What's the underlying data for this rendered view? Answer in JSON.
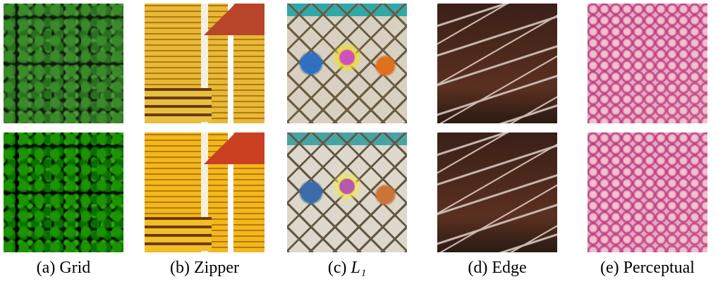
{
  "figure": {
    "panels": [
      {
        "tag": "(a)",
        "name": "Grid",
        "style": "grid-img"
      },
      {
        "tag": "(b)",
        "name": "Zipper",
        "style": "zipper-img"
      },
      {
        "tag": "(c)",
        "name": "L₁",
        "style": "l1-img",
        "italic": true
      },
      {
        "tag": "(d)",
        "name": "Edge",
        "style": "edge-img"
      },
      {
        "tag": "(e)",
        "name": "Perceptual",
        "style": "perceptual-img"
      }
    ]
  }
}
